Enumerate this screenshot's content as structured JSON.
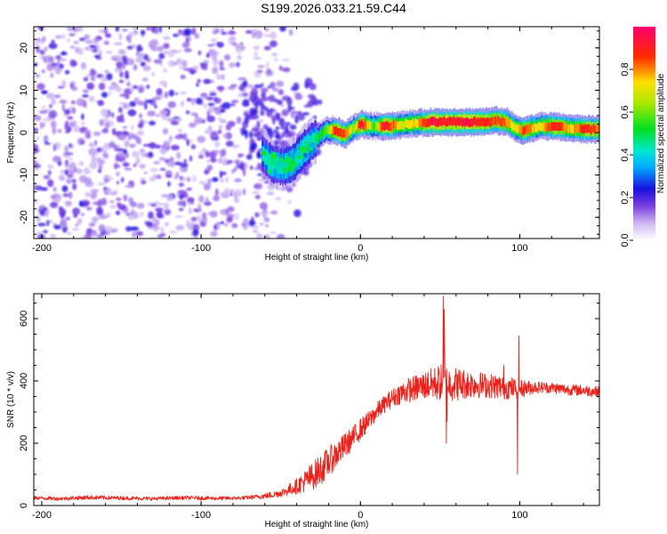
{
  "title": "S199.2026.033.21.59.C44",
  "chart_data": [
    {
      "type": "heatmap",
      "name": "spectrogram",
      "xlabel": "Height of straight line (km)",
      "ylabel": "Frequency (Hz)",
      "xlim": [
        -205,
        150
      ],
      "ylim": [
        -25,
        25
      ],
      "x_ticks": [
        -200,
        -100,
        0,
        100
      ],
      "x_tick_labels": [
        "-200",
        "-100",
        "0",
        "100"
      ],
      "y_ticks": [
        -20,
        -10,
        0,
        10,
        20
      ],
      "y_tick_labels": [
        "-20",
        "-10",
        "0",
        "10",
        "20"
      ],
      "colorbar": {
        "label": "Normalized spectral amplitude",
        "range": [
          0,
          1
        ],
        "ticks": [
          0.0,
          0.2,
          0.4,
          0.6,
          0.8
        ],
        "tick_labels": [
          "0.0",
          "0.2",
          "0.4",
          "0.6",
          "0.8"
        ],
        "colormap": "rainbow (white, purple, blue, cyan, green, yellow, red, magenta)"
      },
      "noise_region": {
        "x": [
          -205,
          -60
        ],
        "y": [
          -25,
          25
        ],
        "amplitude_range": [
          0.0,
          0.25
        ]
      },
      "signal_ridge": [
        {
          "x": -62,
          "y": -5.0,
          "amp": 0.42
        },
        {
          "x": -55,
          "y": -7.5,
          "amp": 0.45
        },
        {
          "x": -48,
          "y": -8.0,
          "amp": 0.5
        },
        {
          "x": -42,
          "y": -7.0,
          "amp": 0.5
        },
        {
          "x": -36,
          "y": -4.0,
          "amp": 0.5
        },
        {
          "x": -30,
          "y": -2.0,
          "amp": 0.45
        },
        {
          "x": -22,
          "y": 0.5,
          "amp": 0.55
        },
        {
          "x": -16,
          "y": 0.5,
          "amp": 0.9
        },
        {
          "x": -10,
          "y": -0.5,
          "amp": 0.85
        },
        {
          "x": -5,
          "y": 1.0,
          "amp": 0.6
        },
        {
          "x": 0,
          "y": 2.0,
          "amp": 0.95
        },
        {
          "x": 8,
          "y": 1.5,
          "amp": 0.55
        },
        {
          "x": 15,
          "y": 1.5,
          "amp": 0.95
        },
        {
          "x": 25,
          "y": 1.8,
          "amp": 0.7
        },
        {
          "x": 35,
          "y": 2.2,
          "amp": 0.75
        },
        {
          "x": 45,
          "y": 2.5,
          "amp": 0.95
        },
        {
          "x": 55,
          "y": 2.5,
          "amp": 0.9
        },
        {
          "x": 65,
          "y": 2.5,
          "amp": 0.95
        },
        {
          "x": 75,
          "y": 2.5,
          "amp": 0.9
        },
        {
          "x": 85,
          "y": 2.8,
          "amp": 0.85
        },
        {
          "x": 92,
          "y": 2.5,
          "amp": 0.8
        },
        {
          "x": 97,
          "y": 1.0,
          "amp": 0.7
        },
        {
          "x": 102,
          "y": 0.5,
          "amp": 0.85
        },
        {
          "x": 112,
          "y": 1.5,
          "amp": 0.7
        },
        {
          "x": 122,
          "y": 1.5,
          "amp": 0.9
        },
        {
          "x": 132,
          "y": 1.0,
          "amp": 0.75
        },
        {
          "x": 142,
          "y": 0.8,
          "amp": 0.9
        },
        {
          "x": 150,
          "y": 0.8,
          "amp": 0.8
        }
      ]
    },
    {
      "type": "line",
      "name": "snr",
      "xlabel": "Height of straight line (km)",
      "ylabel": "SNR (10 * v/v)",
      "xlim": [
        -205,
        150
      ],
      "ylim": [
        0,
        680
      ],
      "x_ticks": [
        -200,
        -100,
        0,
        100
      ],
      "x_tick_labels": [
        "-200",
        "-100",
        "0",
        "100"
      ],
      "y_ticks": [
        0,
        200,
        400,
        600
      ],
      "y_tick_labels": [
        "0",
        "200",
        "400",
        "600"
      ],
      "color": "#e8231c",
      "series": [
        {
          "name": "SNR",
          "x": [
            -205,
            -190,
            -170,
            -150,
            -130,
            -110,
            -90,
            -75,
            -65,
            -58,
            -50,
            -45,
            -40,
            -35,
            -30,
            -25,
            -20,
            -15,
            -10,
            -5,
            0,
            5,
            10,
            15,
            20,
            25,
            30,
            40,
            50,
            60,
            70,
            80,
            90,
            100,
            110,
            120,
            130,
            140,
            150
          ],
          "values": [
            25,
            22,
            26,
            24,
            22,
            25,
            23,
            24,
            28,
            32,
            40,
            50,
            62,
            78,
            95,
            115,
            140,
            165,
            190,
            215,
            245,
            270,
            300,
            325,
            345,
            360,
            370,
            385,
            395,
            390,
            390,
            385,
            380,
            375,
            380,
            378,
            372,
            370,
            365
          ],
          "noise_amplitude": [
            6,
            6,
            7,
            6,
            6,
            6,
            6,
            6,
            7,
            10,
            12,
            18,
            25,
            35,
            45,
            50,
            48,
            45,
            42,
            38,
            35,
            32,
            30,
            28,
            30,
            35,
            40,
            45,
            60,
            55,
            45,
            40,
            40,
            30,
            20,
            18,
            18,
            18,
            18
          ]
        }
      ],
      "spikes": [
        {
          "x": 52,
          "values": [
            672,
            490,
            630,
            520
          ]
        },
        {
          "x": 54,
          "values": [
            200,
            270
          ]
        },
        {
          "x": 98.5,
          "values": [
            100
          ]
        },
        {
          "x": 99.5,
          "values": [
            545
          ]
        },
        {
          "x": 90,
          "values": [
            450
          ]
        }
      ]
    }
  ]
}
